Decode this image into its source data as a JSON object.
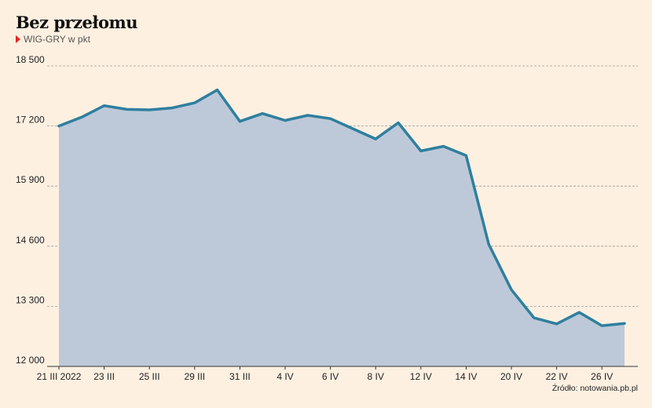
{
  "header": {
    "title": "Bez przełomu",
    "subtitle": "WIG-GRY w pkt"
  },
  "footer": {
    "source": "Źródło: notowania.pb.pl"
  },
  "colors": {
    "line": "#2f7f9e",
    "area": "#bdc9d9",
    "grid": "#9a9a9a",
    "marker": "#e3261c"
  },
  "chart_data": {
    "type": "area",
    "ylim": [
      12000,
      18500
    ],
    "yticks": [
      12000,
      13300,
      14600,
      15900,
      17200,
      18500
    ],
    "ytick_labels": [
      "12 000",
      "13 300",
      "14 600",
      "15 900",
      "17 200",
      "18 500"
    ],
    "x_labels": [
      {
        "index": 0,
        "label": "21 III 2022"
      },
      {
        "index": 2,
        "label": "23 III"
      },
      {
        "index": 4,
        "label": "25 III"
      },
      {
        "index": 6,
        "label": "29 III"
      },
      {
        "index": 8,
        "label": "31 III"
      },
      {
        "index": 10,
        "label": "4 IV"
      },
      {
        "index": 12,
        "label": "6 IV"
      },
      {
        "index": 14,
        "label": "8 IV"
      },
      {
        "index": 16,
        "label": "12 IV"
      },
      {
        "index": 18,
        "label": "14 IV"
      },
      {
        "index": 20,
        "label": "20 IV"
      },
      {
        "index": 22,
        "label": "22 IV"
      },
      {
        "index": 24,
        "label": "26 IV"
      }
    ],
    "values": [
      17200,
      17390,
      17640,
      17560,
      17550,
      17590,
      17700,
      17980,
      17300,
      17470,
      17320,
      17430,
      17360,
      17140,
      16920,
      17270,
      16660,
      16760,
      16560,
      14640,
      13660,
      13050,
      12920,
      13170,
      12880,
      12930
    ],
    "grid": true,
    "legend": "none"
  }
}
